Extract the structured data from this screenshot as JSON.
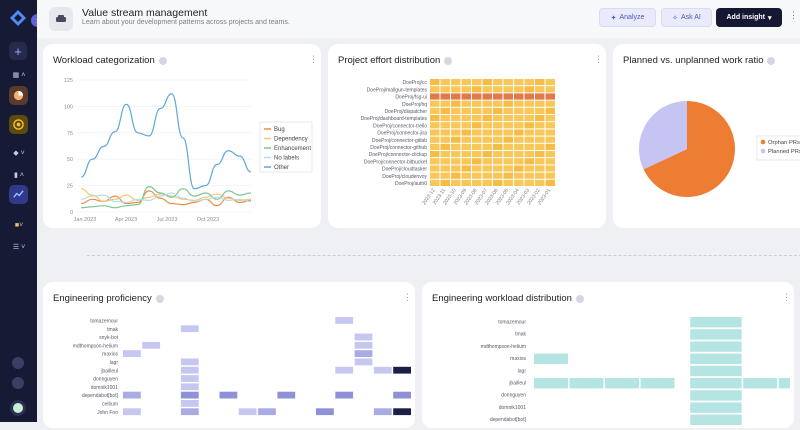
{
  "header": {
    "title": "Value stream management",
    "subtitle": "Learn about your development patterns across projects and teams.",
    "analyze_label": "Analyze",
    "ask_ai_label": "Ask AI",
    "add_insight_label": "Add insight"
  },
  "colors": {
    "sidebar_bg": "#161a35",
    "accent": "#5b63d6",
    "orange": "#ee7d34",
    "lavender": "#c1c0f0"
  },
  "cards": {
    "workload": {
      "title": "Workload categorization"
    },
    "project_effort": {
      "title": "Project effort distribution"
    },
    "planned": {
      "title": "Planned vs. unplanned work ratio"
    },
    "proficiency": {
      "title": "Engineering proficiency"
    },
    "eng_workload": {
      "title": "Engineering workload distribution"
    }
  },
  "chart_data": [
    {
      "type": "line",
      "title": "Workload categorization",
      "x_ticks": [
        "Jan 2023",
        "Apr 2023",
        "Jul 2023",
        "Oct 2023"
      ],
      "ylim": [
        0,
        125
      ],
      "y_ticks": [
        0,
        25,
        50,
        75,
        100,
        125
      ],
      "legend_position": "right",
      "series": [
        {
          "name": "Bug",
          "color": "#f08a4b",
          "values": [
            8,
            12,
            10,
            15,
            8,
            9,
            20,
            13,
            8,
            7,
            9,
            12,
            6,
            14,
            9,
            11
          ]
        },
        {
          "name": "Dependency",
          "color": "#f3c971",
          "values": [
            22,
            16,
            10,
            12,
            16,
            11,
            14,
            17,
            15,
            12,
            11,
            14,
            17,
            13,
            11,
            12
          ]
        },
        {
          "name": "Enhancement",
          "color": "#7cc79a",
          "values": [
            4,
            5,
            6,
            4,
            6,
            7,
            24,
            18,
            14,
            22,
            15,
            18,
            12,
            20,
            16,
            18
          ]
        },
        {
          "name": "No labels",
          "color": "#b7dbe7",
          "values": [
            12,
            15,
            16,
            10,
            9,
            12,
            11,
            15,
            18,
            13,
            10,
            12,
            14,
            11,
            12,
            10
          ]
        },
        {
          "name": "Other",
          "color": "#5da8d8",
          "values": [
            33,
            50,
            62,
            76,
            102,
            75,
            72,
            98,
            112,
            70,
            22,
            25,
            45,
            58,
            53,
            38
          ]
        }
      ]
    },
    {
      "type": "heatmap",
      "title": "Project effort distribution",
      "rows": [
        "DoeProj/cc",
        "DoeProj/mallgun-templates",
        "DoeProj/fsg-ui",
        "DoeProj/hq",
        "DoeProj/dispatcher",
        "DoeProj/dashboard-templates",
        "DoeProj/connector-trello",
        "DoeProj/connector-jira",
        "DoeProj/connector-gitlab",
        "DoeProj/connector-github",
        "DoeProj/connector-clickup",
        "DoeProj/connector-bitbucket",
        "DoeProj/cloudtasker",
        "DoeProj/cloudenvoy",
        "DoeProj/auth0"
      ],
      "columns": [
        "2023-12",
        "2023-11",
        "2023-10",
        "2023-09",
        "2023-08",
        "2023-07",
        "2023-06",
        "2023-05",
        "2023-04",
        "2023-03",
        "2023-02",
        "2023-01"
      ],
      "highlight_row": "DoeProj/fsg-ui"
    },
    {
      "type": "pie",
      "title": "Planned vs. unplanned work ratio",
      "labels": [
        "Orphan PRs",
        "Planned PRs"
      ],
      "values": [
        68,
        32
      ],
      "colors": [
        "#ee7d34",
        "#c5c4f2"
      ],
      "legend_position": "right"
    },
    {
      "type": "heatmap",
      "title": "Engineering proficiency",
      "rows": [
        "tomazemour",
        "tmak",
        "snyk-bot",
        "mdthompson-helium",
        "maxios",
        "lagr",
        "jbailleul",
        "donnguyen",
        "domnik1001",
        "dependabot[bot]",
        "ceitium",
        "John Foo"
      ],
      "column_count": 16
    },
    {
      "type": "heatmap",
      "title": "Engineering workload distribution",
      "rows": [
        "tomazemour",
        "tmak",
        "mdthompson-helium",
        "maxios",
        "lagr",
        "jbailleul",
        "donnguyen",
        "domnik1001",
        "dependabot[bot]"
      ],
      "column_count": 7
    }
  ]
}
